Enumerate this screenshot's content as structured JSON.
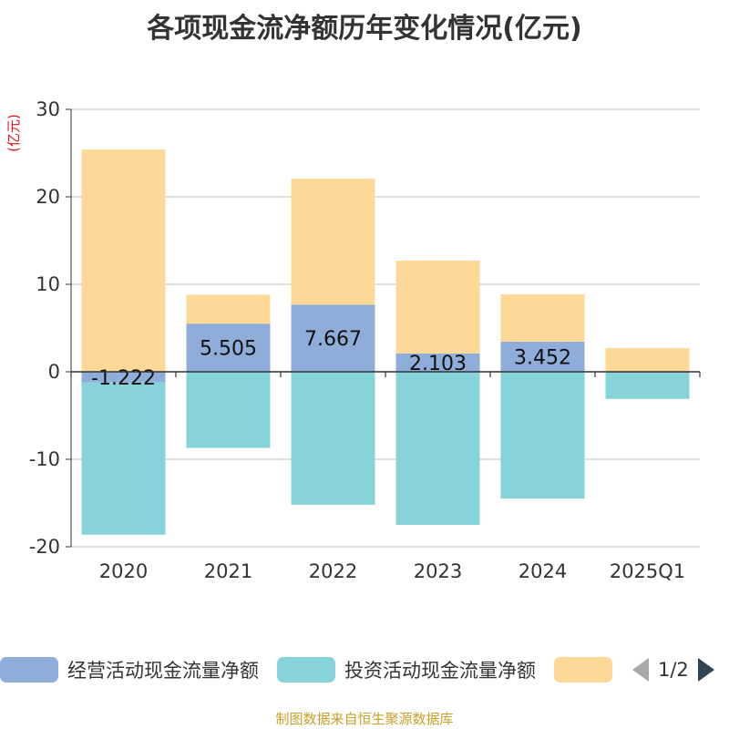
{
  "title": "各项现金流净额历年变化情况(亿元)",
  "footer": "制图数据来自恒生聚源数据库",
  "pager": {
    "text": "1/2"
  },
  "colors": {
    "operating": "#8eadd9",
    "investing": "#86d4d9",
    "financing": "#fed896",
    "grid": "#cccccc",
    "axis": "#333333",
    "unit": "#e0161d"
  },
  "chart_data": {
    "type": "bar",
    "stacked": true,
    "categories": [
      "2020",
      "2021",
      "2022",
      "2023",
      "2024",
      "2025Q1"
    ],
    "yunit": "(亿元)",
    "ylim": [
      -20,
      30
    ],
    "yticks": [
      30,
      20,
      10,
      0,
      -10,
      -20
    ],
    "grid": true,
    "legend_position": "bottom",
    "series": [
      {
        "name": "经营活动现金流量净额",
        "color_key": "operating",
        "values": [
          -1.222,
          5.505,
          7.667,
          2.103,
          3.452,
          -0.1
        ],
        "labels": [
          "-1.222",
          "5.505",
          "7.667",
          "2.103",
          "3.452",
          ""
        ]
      },
      {
        "name": "投资活动现金流量净额",
        "color_key": "investing",
        "values": [
          -17.4,
          -8.7,
          -15.2,
          -17.5,
          -14.5,
          -3.0
        ],
        "labels": [
          "",
          "",
          "",
          "",
          "",
          ""
        ]
      },
      {
        "name": "",
        "color_key": "financing",
        "values": [
          25.4,
          3.3,
          14.4,
          10.6,
          5.4,
          2.7
        ],
        "labels": [
          "",
          "",
          "",
          "",
          "",
          ""
        ]
      }
    ]
  }
}
